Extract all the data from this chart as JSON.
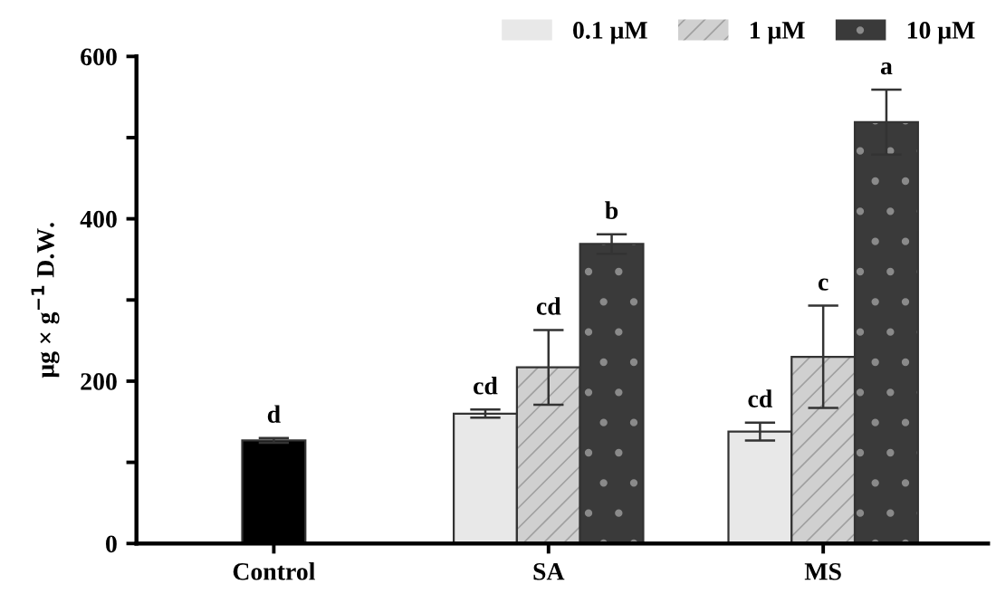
{
  "chart_data": {
    "type": "bar",
    "categories": [
      "Control",
      "SA",
      "MS"
    ],
    "ylabel": "μg × g$^{−1}$ D.W.",
    "ylim": [
      0,
      600
    ],
    "yticks": [
      0,
      {
        "value": 100,
        "label": null
      },
      200,
      {
        "value": 300,
        "label": null
      },
      400,
      {
        "value": 500,
        "label": null
      },
      600
    ],
    "grid": false,
    "legend": "top right",
    "series": [
      {
        "color": "#000000",
        "values": [
          127,
          null,
          null
        ],
        "errors": [
          3,
          null,
          null
        ],
        "value_labels": [
          "d",
          null,
          null
        ]
      },
      {
        "name": "0.1 μM",
        "color": "#e8e8e8",
        "values": [
          null,
          160,
          138
        ],
        "errors": [
          null,
          5,
          11
        ],
        "value_labels": [
          null,
          "cd",
          "cd"
        ]
      },
      {
        "name": "1 μM",
        "color": "#d0d0d0",
        "values": [
          null,
          217,
          230
        ],
        "errors": [
          null,
          46,
          63
        ],
        "value_labels": [
          null,
          "cd",
          "c"
        ]
      },
      {
        "name": "10 μM",
        "color": "#3a3a3a",
        "values": [
          null,
          369,
          519
        ],
        "errors": [
          null,
          12,
          40
        ],
        "value_labels": [
          null,
          "b",
          "a"
        ]
      }
    ]
  }
}
